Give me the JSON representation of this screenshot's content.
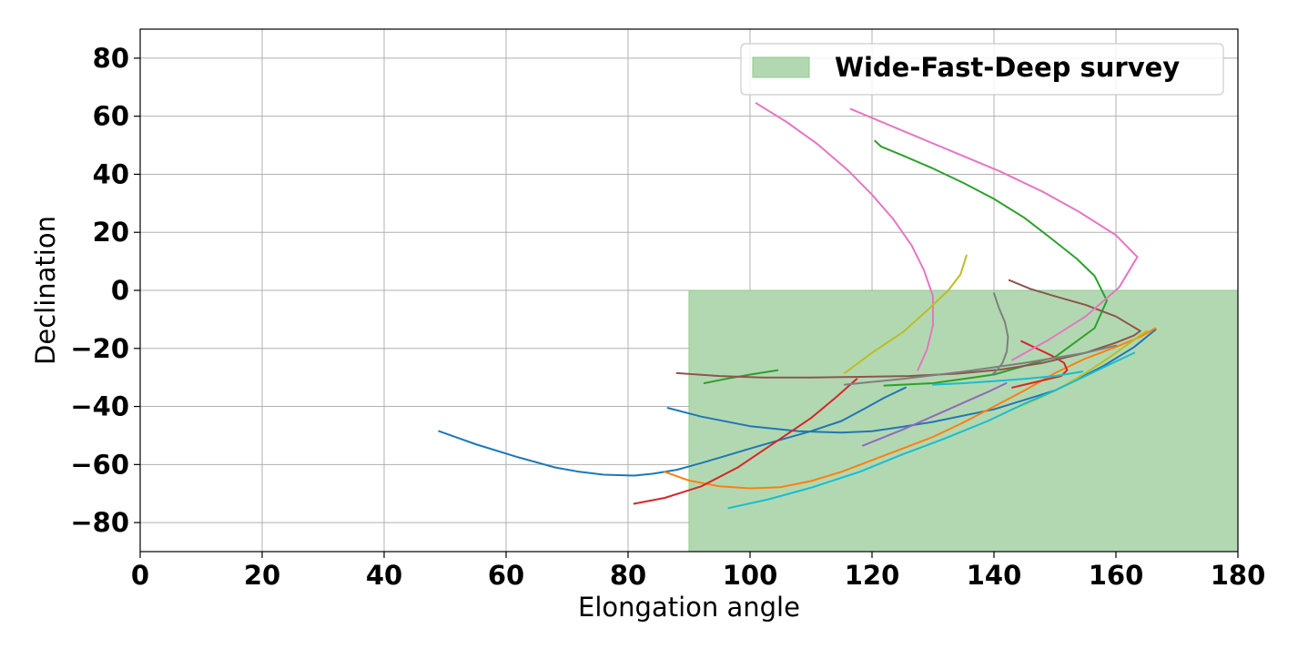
{
  "chart_data": {
    "type": "line",
    "title": "",
    "xlabel": "Elongation angle",
    "ylabel": "Declination",
    "xlim": [
      0,
      180
    ],
    "ylim": [
      -90,
      90
    ],
    "xticks": [
      0,
      20,
      40,
      60,
      80,
      100,
      120,
      140,
      160,
      180
    ],
    "yticks": [
      -80,
      -60,
      -40,
      -20,
      0,
      20,
      40,
      60,
      80
    ],
    "grid": true,
    "legend": {
      "placement": "top-right",
      "entries": [
        "Wide-Fast-Deep survey"
      ]
    },
    "region": {
      "label": "Wide-Fast-Deep survey",
      "x": [
        90,
        180
      ],
      "y": [
        -90,
        0
      ],
      "color": "#b2d8b2"
    },
    "series": [
      {
        "color": "#1f77b4",
        "x": [
          49,
          55,
          62,
          68,
          72,
          76,
          81,
          84,
          88,
          92,
          96,
          100,
          105,
          110,
          115,
          119,
          122,
          125.5
        ],
        "y": [
          -48.5,
          -53,
          -57.5,
          -61,
          -62.5,
          -63.5,
          -63.8,
          -63.2,
          -61.8,
          -59.5,
          -57,
          -54.5,
          -51.5,
          -48.5,
          -45,
          -40.5,
          -37,
          -33.5
        ]
      },
      {
        "color": "#1f77b4",
        "x": [
          86.5,
          92,
          100,
          108,
          115,
          120,
          125,
          130,
          140,
          150,
          158,
          163,
          166.5
        ],
        "y": [
          -40.5,
          -43.5,
          -46.8,
          -48.5,
          -49,
          -48.5,
          -47,
          -45.3,
          -41,
          -34.5,
          -26,
          -19.5,
          -13.5
        ]
      },
      {
        "color": "#ff7f0e",
        "x": [
          86,
          90,
          95,
          100,
          105,
          110,
          115,
          120,
          125,
          130,
          135,
          140,
          145,
          150,
          155,
          160,
          164,
          166.5
        ],
        "y": [
          -62.5,
          -65.5,
          -67.5,
          -68.2,
          -67.8,
          -65.7,
          -62.5,
          -58.5,
          -54.5,
          -50.5,
          -45.5,
          -40,
          -34.5,
          -28.5,
          -23.5,
          -19.5,
          -16,
          -13
        ]
      },
      {
        "color": "#2ca02c",
        "x": [
          92.5,
          96,
          100,
          104.5
        ],
        "y": [
          -32,
          -30.5,
          -29,
          -27.5
        ]
      },
      {
        "color": "#2ca02c",
        "x": [
          120.5,
          121.5,
          125,
          130,
          135,
          140,
          145,
          149,
          153.5,
          156.5,
          158.5,
          156.5,
          150,
          140,
          130,
          122
        ],
        "y": [
          51.5,
          49.5,
          46.5,
          42,
          37,
          31.5,
          25,
          18.5,
          11,
          5,
          -3.5,
          -13,
          -23,
          -29,
          -32,
          -32.8
        ]
      },
      {
        "color": "#d62728",
        "x": [
          81,
          86,
          92,
          98,
          104,
          110,
          114,
          117.5
        ],
        "y": [
          -73.5,
          -71.5,
          -67.5,
          -61,
          -52.5,
          -44,
          -37,
          -30.5
        ]
      },
      {
        "color": "#d62728",
        "x": [
          144.5,
          147,
          149.5,
          151.5,
          152,
          151,
          148,
          145,
          143
        ],
        "y": [
          -17.5,
          -20,
          -22.5,
          -25,
          -27.5,
          -29.5,
          -31,
          -32.5,
          -33.5
        ]
      },
      {
        "color": "#9467bd",
        "x": [
          118.5,
          125,
          132,
          139,
          142
        ],
        "y": [
          -53.5,
          -48,
          -41.5,
          -35,
          -32
        ]
      },
      {
        "color": "#8c564b",
        "x": [
          88,
          95,
          102,
          110,
          118,
          126,
          134,
          141,
          148,
          155,
          160,
          163,
          164,
          160,
          155,
          150,
          146,
          142.5
        ],
        "y": [
          -28.5,
          -29.5,
          -30,
          -30,
          -29.8,
          -29.5,
          -28.7,
          -27.3,
          -25,
          -21.5,
          -18,
          -15.5,
          -14,
          -9,
          -5,
          -2,
          0.5,
          3.5
        ]
      },
      {
        "color": "#e377c2",
        "x": [
          101,
          106,
          111,
          116,
          120,
          123.5,
          126.5,
          128.5,
          130,
          130,
          129,
          127.5
        ],
        "y": [
          64.5,
          58,
          50.5,
          41.5,
          33,
          24.5,
          15.5,
          7,
          -2,
          -12,
          -20.5,
          -27.5
        ]
      },
      {
        "color": "#e377c2",
        "x": [
          116.5,
          125,
          133,
          141,
          148,
          154,
          160,
          163.5,
          160.5,
          155,
          149,
          143
        ],
        "y": [
          62.5,
          55,
          48,
          41,
          34,
          27,
          19,
          11.5,
          1,
          -9,
          -17,
          -24
        ]
      },
      {
        "color": "#7f7f7f",
        "x": [
          115.5,
          125,
          135,
          145,
          155,
          160
        ],
        "y": [
          -32.5,
          -30.5,
          -28,
          -25,
          -21.5,
          -19
        ]
      },
      {
        "color": "#7f7f7f",
        "x": [
          140,
          140.8,
          141.8,
          142.3,
          142.1,
          141.4,
          140.5,
          139.7
        ],
        "y": [
          -1,
          -6,
          -11,
          -16,
          -21,
          -25,
          -27.5,
          -29
        ]
      },
      {
        "color": "#bcbd22",
        "x": [
          115.5,
          120,
          125,
          129,
          132.5,
          134.5,
          135.5
        ],
        "y": [
          -28.5,
          -21.5,
          -14.5,
          -7,
          0,
          5.5,
          12
        ]
      },
      {
        "color": "#bcbd22",
        "x": [
          143,
          147,
          151,
          155,
          159,
          162,
          165
        ],
        "y": [
          -41,
          -37.5,
          -33.5,
          -28.5,
          -23,
          -18.5,
          -14
        ]
      },
      {
        "color": "#17becf",
        "x": [
          96.5,
          103,
          110,
          118,
          125,
          132,
          139,
          145,
          150,
          155,
          160,
          163
        ],
        "y": [
          -75,
          -72,
          -68,
          -62.5,
          -56.5,
          -51,
          -45,
          -39,
          -34.5,
          -29.5,
          -24.5,
          -21.5
        ]
      },
      {
        "color": "#17becf",
        "x": [
          130,
          135,
          140,
          145,
          150,
          154.5
        ],
        "y": [
          -32.5,
          -32,
          -31.3,
          -30.5,
          -29.5,
          -28
        ]
      }
    ]
  }
}
